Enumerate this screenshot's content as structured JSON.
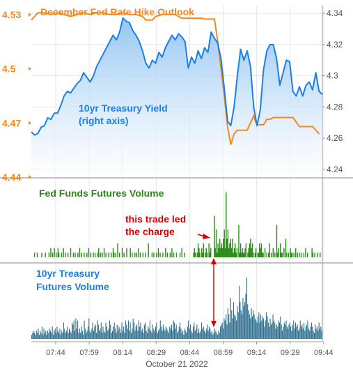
{
  "colors": {
    "orange": "#f5891f",
    "blue": "#1a80e6",
    "green": "#2a8a17",
    "red": "#d40000",
    "teal": "#2c6e8e",
    "grid": "#e6e6e6",
    "axis": "#999999"
  },
  "chart_data": [
    {
      "type": "line",
      "title": "December Fed Rate Hike Outlook",
      "x_tick_labels": [
        "07:44",
        "07:59",
        "08:14",
        "08:29",
        "08:44",
        "08:59",
        "09:14",
        "09:29",
        "09:44"
      ],
      "x_date_label": "October 21 2022",
      "left_axis": {
        "ticks": [
          "4.53",
          "4.5",
          "4.47",
          "4.44"
        ],
        "ylim": [
          4.44,
          4.535
        ]
      },
      "right_axis": {
        "ticks": [
          "4.34",
          "4.32",
          "4.3",
          "4.28",
          "4.26",
          "4.24"
        ],
        "ylim": [
          4.235,
          4.345
        ]
      },
      "series": [
        {
          "name": "December Fed Rate Hike Outlook",
          "axis": "left",
          "color": "#f5891f",
          "points": [
            [
              0,
              4.527
            ],
            [
              2,
              4.531
            ],
            [
              4,
              4.531
            ],
            [
              6,
              4.53
            ],
            [
              8,
              4.531
            ],
            [
              10,
              4.53
            ],
            [
              12,
              4.529
            ],
            [
              14,
              4.53
            ],
            [
              16,
              4.531
            ],
            [
              18,
              4.53
            ],
            [
              20,
              4.531
            ],
            [
              22,
              4.531
            ],
            [
              24,
              4.53
            ],
            [
              26,
              4.53
            ],
            [
              28,
              4.531
            ],
            [
              30,
              4.53
            ],
            [
              32,
              4.53
            ],
            [
              34,
              4.529
            ],
            [
              35,
              4.527
            ],
            [
              37,
              4.527
            ],
            [
              38,
              4.529
            ],
            [
              40,
              4.53
            ],
            [
              42,
              4.53
            ],
            [
              44,
              4.53
            ],
            [
              46,
              4.528
            ],
            [
              48,
              4.528
            ],
            [
              50,
              4.528
            ],
            [
              52,
              4.528
            ],
            [
              53,
              4.5275
            ],
            [
              55,
              4.5275
            ],
            [
              56,
              4.5275
            ],
            [
              57,
              4.515
            ],
            [
              58,
              4.5
            ],
            [
              59,
              4.485
            ],
            [
              60,
              4.468
            ],
            [
              61,
              4.458
            ],
            [
              62,
              4.464
            ],
            [
              63,
              4.466
            ],
            [
              64,
              4.466
            ],
            [
              65,
              4.466
            ],
            [
              66,
              4.466
            ],
            [
              67,
              4.47
            ],
            [
              68,
              4.474
            ],
            [
              68.5,
              4.471
            ],
            [
              69,
              4.469
            ],
            [
              71,
              4.469
            ],
            [
              72,
              4.472
            ],
            [
              73,
              4.472
            ],
            [
              74,
              4.473
            ],
            [
              75,
              4.473
            ],
            [
              76,
              4.473
            ],
            [
              78,
              4.473
            ],
            [
              80,
              4.473
            ],
            [
              82,
              4.468
            ],
            [
              84,
              4.468
            ],
            [
              86,
              4.468
            ],
            [
              87,
              4.466
            ],
            [
              88,
              4.464
            ]
          ]
        },
        {
          "name": "10yr Treasury Yield",
          "label": [
            "10yr Treasury Yield",
            "(right axis)"
          ],
          "axis": "right",
          "color": "#1a80e6",
          "points": [
            [
              0,
              4.264
            ],
            [
              1,
              4.262
            ],
            [
              2,
              4.263
            ],
            [
              3,
              4.267
            ],
            [
              4,
              4.268
            ],
            [
              5,
              4.273
            ],
            [
              6,
              4.272
            ],
            [
              7,
              4.276
            ],
            [
              8,
              4.276
            ],
            [
              9,
              4.281
            ],
            [
              10,
              4.287
            ],
            [
              11,
              4.29
            ],
            [
              12,
              4.289
            ],
            [
              13,
              4.292
            ],
            [
              14,
              4.295
            ],
            [
              15,
              4.297
            ],
            [
              16,
              4.302
            ],
            [
              17,
              4.299
            ],
            [
              18,
              4.296
            ],
            [
              19,
              4.3
            ],
            [
              20,
              4.306
            ],
            [
              21,
              4.31
            ],
            [
              22,
              4.314
            ],
            [
              23,
              4.318
            ],
            [
              24,
              4.322
            ],
            [
              25,
              4.326
            ],
            [
              26,
              4.323
            ],
            [
              27,
              4.328
            ],
            [
              28,
              4.337
            ],
            [
              29,
              4.335
            ],
            [
              30,
              4.334
            ],
            [
              31,
              4.329
            ],
            [
              32,
              4.326
            ],
            [
              33,
              4.322
            ],
            [
              34,
              4.316
            ],
            [
              35,
              4.308
            ],
            [
              36,
              4.305
            ],
            [
              37,
              4.31
            ],
            [
              38,
              4.308
            ],
            [
              39,
              4.315
            ],
            [
              40,
              4.312
            ],
            [
              41,
              4.318
            ],
            [
              42,
              4.322
            ],
            [
              43,
              4.326
            ],
            [
              44,
              4.323
            ],
            [
              45,
              4.327
            ],
            [
              46,
              4.325
            ],
            [
              47,
              4.322
            ],
            [
              48,
              4.305
            ],
            [
              49,
              4.312
            ],
            [
              50,
              4.308
            ],
            [
              51,
              4.316
            ],
            [
              52,
              4.311
            ],
            [
              53,
              4.318
            ],
            [
              54,
              4.315
            ],
            [
              55,
              4.328
            ],
            [
              56,
              4.324
            ],
            [
              57,
              4.321
            ],
            [
              58,
              4.311
            ],
            [
              59,
              4.292
            ],
            [
              60,
              4.271
            ],
            [
              61,
              4.268
            ],
            [
              62,
              4.28
            ],
            [
              63,
              4.3
            ],
            [
              64,
              4.317
            ],
            [
              65,
              4.31
            ],
            [
              66,
              4.316
            ],
            [
              67,
              4.306
            ],
            [
              68,
              4.28
            ],
            [
              69,
              4.268
            ],
            [
              70,
              4.278
            ],
            [
              71,
              4.304
            ],
            [
              72,
              4.316
            ],
            [
              73,
              4.32
            ],
            [
              74,
              4.32
            ],
            [
              75,
              4.311
            ],
            [
              76,
              4.294
            ],
            [
              77,
              4.302
            ],
            [
              78,
              4.31
            ],
            [
              79,
              4.309
            ],
            [
              80,
              4.29
            ],
            [
              81,
              4.287
            ],
            [
              82,
              4.293
            ],
            [
              83,
              4.287
            ],
            [
              84,
              4.294
            ],
            [
              85,
              4.296
            ],
            [
              86,
              4.291
            ],
            [
              87,
              4.302
            ],
            [
              88,
              4.29
            ],
            [
              89,
              4.288
            ]
          ]
        }
      ]
    },
    {
      "type": "bar",
      "title": "Fed Funds Futures Volume",
      "annotation": [
        "this trade led",
        "the charge"
      ],
      "color": "#2a8a17",
      "values": [
        0,
        0,
        0,
        1,
        0,
        0,
        1,
        0,
        0,
        0,
        0,
        1,
        0,
        0,
        0,
        1,
        0,
        0,
        0,
        1,
        0,
        2,
        0,
        1,
        0,
        2,
        0,
        1,
        0,
        2,
        1,
        0,
        0,
        1,
        0,
        2,
        0,
        1,
        0,
        0,
        1,
        0,
        0,
        2,
        0,
        0,
        1,
        0,
        1,
        0,
        0,
        1,
        0,
        2,
        0,
        1,
        0,
        0,
        1,
        0,
        0,
        1,
        0,
        2,
        0,
        1,
        0,
        0,
        1,
        0,
        1,
        0,
        0,
        1,
        2,
        0,
        1,
        0,
        1,
        0,
        2,
        0,
        1,
        0,
        0,
        1,
        0,
        0,
        1,
        0,
        2,
        1,
        0,
        1,
        0,
        3,
        0,
        1,
        0,
        0,
        2,
        0,
        1,
        0,
        0,
        2,
        0,
        0,
        0,
        2,
        0,
        1,
        0,
        0,
        1,
        0,
        1,
        0,
        2,
        0,
        1,
        0,
        0,
        1,
        0,
        0,
        1,
        0,
        0,
        3,
        0,
        0,
        0,
        1,
        0,
        1,
        0,
        0,
        1,
        0,
        2,
        0,
        1,
        0,
        0,
        1,
        0,
        0,
        2,
        0,
        1,
        0,
        0,
        1,
        0,
        2,
        0,
        1,
        0,
        0,
        1,
        0,
        0,
        0,
        1,
        0,
        2,
        0,
        0,
        1,
        0,
        0,
        0,
        0,
        0,
        0,
        0,
        0,
        0,
        1,
        2,
        1,
        0,
        1,
        3,
        2,
        1,
        0,
        2,
        1,
        3,
        0,
        1,
        2,
        1,
        0,
        3,
        1,
        2,
        0,
        0,
        0,
        9,
        2,
        6,
        1,
        3,
        2,
        4,
        2,
        3,
        2,
        4,
        6,
        2,
        14,
        4,
        6,
        2,
        3,
        4,
        2,
        4,
        1,
        2,
        3,
        1,
        2,
        0,
        7,
        1,
        3,
        1,
        2,
        1,
        1,
        2,
        3,
        0,
        1,
        2,
        3,
        4,
        2,
        3,
        1,
        0,
        1,
        2,
        0,
        1,
        1,
        3,
        2,
        3,
        1,
        1,
        0,
        2,
        0,
        1,
        0,
        1,
        3,
        0,
        1,
        0,
        2,
        0,
        1,
        0,
        7,
        1,
        2,
        0,
        3,
        1,
        1,
        0,
        2,
        0,
        4,
        1,
        0,
        1,
        0,
        2,
        1,
        1,
        0,
        1,
        0,
        2,
        0,
        1,
        0,
        1,
        0,
        1,
        0,
        0,
        1,
        0,
        2,
        0,
        1,
        0,
        0,
        0,
        0,
        2,
        1,
        0,
        1,
        0,
        0,
        1,
        0,
        0,
        1,
        0,
        0
      ]
    },
    {
      "type": "bar",
      "title": "10yr Treasury Futures Volume",
      "color": "#2c6e8e",
      "values": [
        2,
        3,
        4,
        3,
        2,
        4,
        3,
        5,
        2,
        4,
        3,
        6,
        2,
        5,
        3,
        4,
        2,
        4,
        3,
        5,
        4,
        3,
        6,
        2,
        4,
        5,
        3,
        6,
        4,
        3,
        5,
        2,
        4,
        3,
        8,
        5,
        3,
        4,
        6,
        3,
        5,
        4,
        3,
        8,
        7,
        9,
        4,
        10,
        5,
        9,
        3,
        5,
        3,
        6,
        4,
        2,
        9,
        5,
        3,
        4,
        6,
        10,
        4,
        3,
        5,
        8,
        4,
        6,
        7,
        3,
        9,
        7,
        4,
        5,
        8,
        3,
        6,
        4,
        3,
        8,
        6,
        4,
        5,
        9,
        7,
        3,
        4,
        6,
        8,
        5,
        3,
        7,
        4,
        6,
        5,
        3,
        8,
        4,
        6,
        3,
        9,
        7,
        5,
        9,
        4,
        8,
        3,
        5,
        10,
        8,
        4,
        6,
        7,
        4,
        9,
        6,
        8,
        4,
        5,
        3,
        7,
        8,
        4,
        3,
        6,
        5,
        9,
        4,
        3,
        7,
        5,
        4,
        6,
        8,
        3,
        4,
        5,
        9,
        6,
        4,
        7,
        5,
        4,
        6,
        5,
        4,
        3,
        6,
        5,
        7,
        4,
        9,
        8,
        5,
        7,
        3,
        4,
        6,
        8,
        5,
        3,
        4,
        2,
        5,
        4,
        3,
        6,
        9,
        5,
        7,
        4,
        3,
        6,
        8,
        4,
        5,
        7,
        3,
        5,
        3,
        4,
        8,
        5,
        6,
        4,
        3,
        5,
        7,
        4,
        6,
        5,
        3,
        4,
        2,
        3,
        5,
        4,
        3,
        2,
        4,
        3,
        6,
        7,
        8,
        5,
        10,
        9,
        12,
        7,
        15,
        12,
        8,
        20,
        14,
        10,
        18,
        12,
        11,
        9,
        16,
        13,
        26,
        18,
        14,
        12,
        20,
        16,
        18,
        22,
        30,
        17,
        14,
        12,
        10,
        15,
        11,
        14,
        12,
        10,
        9,
        8,
        11,
        13,
        8,
        12,
        9,
        11,
        10,
        6,
        9,
        13,
        11,
        8,
        6,
        10,
        7,
        8,
        12,
        9,
        8,
        5,
        7,
        6,
        9,
        8,
        11,
        7,
        4,
        6,
        8,
        7,
        9,
        6,
        5,
        7,
        8,
        6,
        4,
        7,
        9,
        5,
        8,
        6,
        7,
        4,
        5,
        9,
        6,
        7,
        5,
        8,
        4,
        6,
        7,
        9,
        5,
        4,
        6,
        8,
        6,
        4,
        3,
        7,
        5,
        6,
        4,
        8,
        5,
        6,
        4
      ]
    }
  ]
}
